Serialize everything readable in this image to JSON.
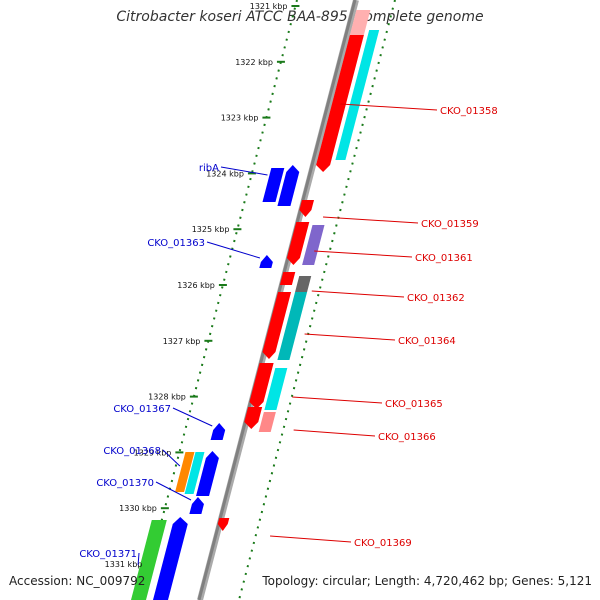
{
  "title": "Citrobacter koseri ATCC BAA-895, complete genome",
  "accession": "Accession: NC_009792",
  "topology": "Topology: circular; Length: 4,720,462 bp; Genes: 5,121",
  "colors": {
    "backbone": "#808080",
    "tick": "#1a7a1a",
    "plus_label": "#dd0000",
    "minus_label": "#0000cc",
    "red": "#ff0000",
    "blue": "#0000ff",
    "cyan": "#00e5e5",
    "teal": "#00b8b8",
    "green": "#33cc33",
    "orange": "#ff8800",
    "purple": "#7f66cc",
    "gray": "#666666",
    "pink": "#ff8888"
  },
  "ticks": [
    "1321 kbp",
    "1322 kbp",
    "1323 kbp",
    "1324 kbp",
    "1325 kbp",
    "1326 kbp",
    "1327 kbp",
    "1328 kbp",
    "1329 kbp",
    "1330 kbp",
    "1331 kbp"
  ],
  "plus_labels": [
    "CKO_01358",
    "CKO_01359",
    "CKO_01361",
    "CKO_01362",
    "CKO_01364",
    "CKO_01365",
    "CKO_01366",
    "CKO_01369"
  ],
  "minus_labels": [
    "ribA",
    "CKO_01363",
    "CKO_01367",
    "CKO_01368",
    "CKO_01370",
    "CKO_01371"
  ]
}
